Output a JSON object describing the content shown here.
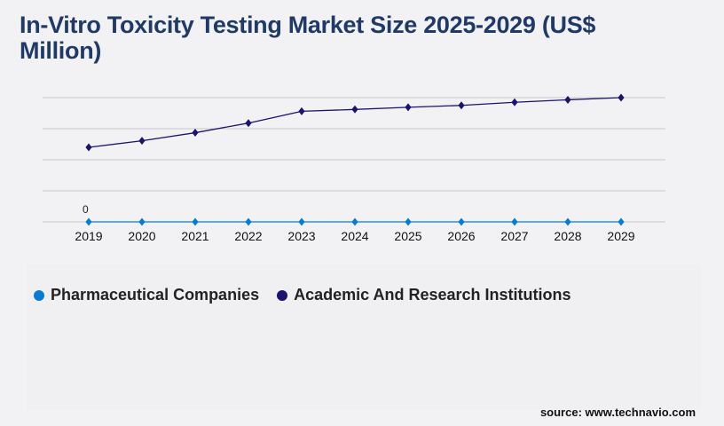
{
  "title": "In-Vitro Toxicity Testing Market Size 2025-2029 (US$ Million)",
  "source": "source: www.technavio.com",
  "chart_data": {
    "type": "line",
    "title": "In-Vitro Toxicity Testing Market Size 2025-2029 (US$ Million)",
    "categories": [
      "2019",
      "2020",
      "2021",
      "2022",
      "2023",
      "2024",
      "2025",
      "2026",
      "2027",
      "2028",
      "2029"
    ],
    "ylim": [
      0,
      4
    ],
    "grid": true,
    "legend": "bottom-left",
    "series": [
      {
        "name": "Pharmaceutical Companies",
        "color": "#0a7bd2",
        "values": [
          0,
          0,
          0,
          0,
          0,
          0,
          0,
          0,
          0,
          0,
          0
        ],
        "data_labels": [
          "0"
        ]
      },
      {
        "name": "Academic And Research Institutions",
        "color": "#1a1470",
        "values": [
          2.4,
          2.61,
          2.87,
          3.18,
          3.56,
          3.62,
          3.69,
          3.75,
          3.85,
          3.93,
          4.0
        ]
      }
    ]
  }
}
